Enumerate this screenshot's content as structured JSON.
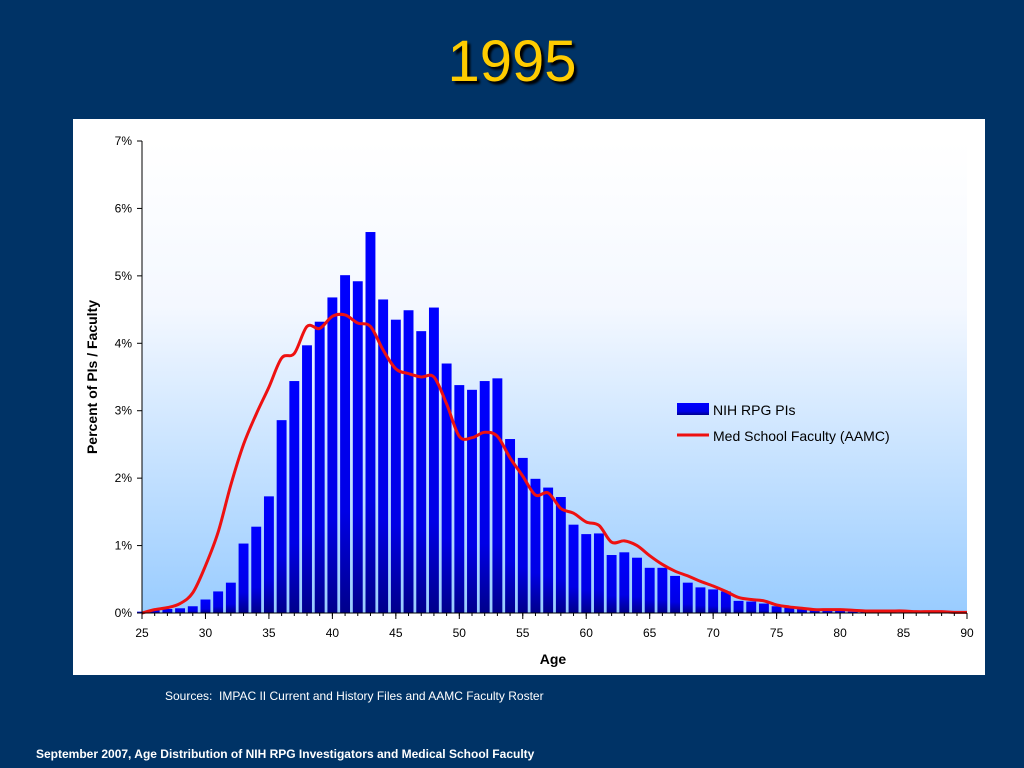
{
  "slide": {
    "title": "1995",
    "sources": "Sources:  IMPAC II Current and History Files and AAMC Faculty Roster",
    "footer": "September 2007, Age Distribution of NIH RPG Investigators and Medical School Faculty"
  },
  "colors": {
    "background": "#003366",
    "title": "#ffcc00",
    "bar_fill": "#0000ff",
    "bar_dark": "#00008b",
    "line": "#ee1111",
    "plot_top": "#ffffff",
    "plot_bottom": "#99ccff"
  },
  "chart_data": {
    "type": "bar",
    "title": "",
    "xlabel": "Age",
    "ylabel": "Percent of PIs / Faculty",
    "xlim": [
      25,
      90
    ],
    "ylim": [
      0,
      7
    ],
    "x_ticks": [
      "25",
      "30",
      "35",
      "40",
      "45",
      "50",
      "55",
      "60",
      "65",
      "70",
      "75",
      "80",
      "85",
      "90"
    ],
    "y_ticks": [
      "0%",
      "1%",
      "2%",
      "3%",
      "4%",
      "5%",
      "6%",
      "7%"
    ],
    "grid": false,
    "legend_position": "right-middle",
    "x": [
      25,
      26,
      27,
      28,
      29,
      30,
      31,
      32,
      33,
      34,
      35,
      36,
      37,
      38,
      39,
      40,
      41,
      42,
      43,
      44,
      45,
      46,
      47,
      48,
      49,
      50,
      51,
      52,
      53,
      54,
      55,
      56,
      57,
      58,
      59,
      60,
      61,
      62,
      63,
      64,
      65,
      66,
      67,
      68,
      69,
      70,
      71,
      72,
      73,
      74,
      75,
      76,
      77,
      78,
      79,
      80,
      81,
      82,
      83,
      84,
      85,
      86,
      87,
      88,
      89,
      90
    ],
    "series": [
      {
        "name": "NIH RPG PIs",
        "type": "bar",
        "color": "#0000ff",
        "values": [
          0.02,
          0.04,
          0.06,
          0.07,
          0.1,
          0.2,
          0.32,
          0.45,
          1.03,
          1.28,
          1.73,
          2.86,
          3.44,
          3.97,
          4.32,
          4.68,
          5.01,
          4.92,
          5.65,
          4.65,
          4.35,
          4.49,
          4.18,
          4.53,
          3.7,
          3.38,
          3.31,
          3.44,
          3.48,
          2.58,
          2.3,
          1.99,
          1.86,
          1.72,
          1.31,
          1.17,
          1.18,
          0.86,
          0.9,
          0.82,
          0.67,
          0.67,
          0.55,
          0.45,
          0.38,
          0.35,
          0.32,
          0.18,
          0.17,
          0.14,
          0.1,
          0.09,
          0.07,
          0.04,
          0.03,
          0.03,
          0.02,
          0.02,
          0.01,
          0.01,
          0.01,
          0.01,
          0.01,
          0.01,
          0.0,
          0.0
        ]
      },
      {
        "name": "Med School Faculty (AAMC)",
        "type": "line",
        "color": "#ee1111",
        "values": [
          0.0,
          0.05,
          0.08,
          0.14,
          0.3,
          0.7,
          1.2,
          1.9,
          2.5,
          2.95,
          3.35,
          3.78,
          3.85,
          4.25,
          4.22,
          4.4,
          4.42,
          4.3,
          4.25,
          3.9,
          3.62,
          3.55,
          3.5,
          3.5,
          3.1,
          2.62,
          2.6,
          2.68,
          2.62,
          2.3,
          2.03,
          1.75,
          1.78,
          1.55,
          1.48,
          1.35,
          1.3,
          1.05,
          1.07,
          1.0,
          0.85,
          0.72,
          0.62,
          0.55,
          0.47,
          0.4,
          0.32,
          0.23,
          0.2,
          0.18,
          0.12,
          0.09,
          0.07,
          0.05,
          0.05,
          0.05,
          0.04,
          0.03,
          0.03,
          0.03,
          0.03,
          0.02,
          0.02,
          0.02,
          0.01,
          0.01
        ]
      }
    ]
  }
}
